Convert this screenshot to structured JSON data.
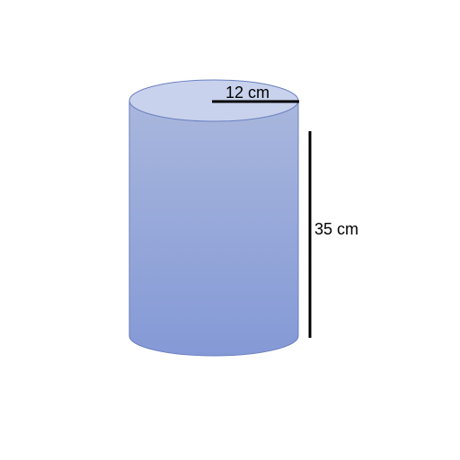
{
  "shape": "cylinder",
  "colors": {
    "body_top": "#a9b7dd",
    "body_bottom": "#8499d6",
    "top_face": "#c9d2ec",
    "outline": "#6a7fc0",
    "dimension_line": "#000000"
  },
  "radius": {
    "value": 12,
    "unit": "cm",
    "label": "12 cm"
  },
  "height": {
    "value": 35,
    "unit": "cm",
    "label": "35 cm"
  }
}
